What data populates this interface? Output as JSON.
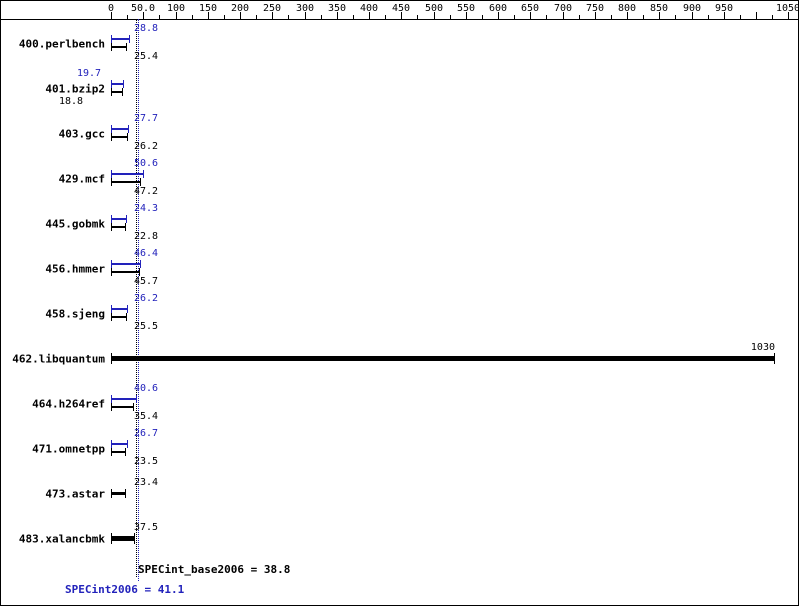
{
  "chart_data": {
    "type": "bar",
    "orientation": "horizontal",
    "x_axis": {
      "min": 0,
      "max": 1050,
      "major_tick_interval": 50,
      "minor_tick_interval": 25,
      "tick_labels": [
        {
          "value": 0,
          "label": "0"
        },
        {
          "value": 50,
          "label": "50.0"
        },
        {
          "value": 100,
          "label": "100"
        },
        {
          "value": 150,
          "label": "150"
        },
        {
          "value": 200,
          "label": "200"
        },
        {
          "value": 250,
          "label": "250"
        },
        {
          "value": 300,
          "label": "300"
        },
        {
          "value": 350,
          "label": "350"
        },
        {
          "value": 400,
          "label": "400"
        },
        {
          "value": 450,
          "label": "450"
        },
        {
          "value": 500,
          "label": "500"
        },
        {
          "value": 550,
          "label": "550"
        },
        {
          "value": 600,
          "label": "600"
        },
        {
          "value": 650,
          "label": "650"
        },
        {
          "value": 700,
          "label": "700"
        },
        {
          "value": 750,
          "label": "750"
        },
        {
          "value": 800,
          "label": "800"
        },
        {
          "value": 850,
          "label": "850"
        },
        {
          "value": 900,
          "label": "900"
        },
        {
          "value": 950,
          "label": "950"
        },
        {
          "value": 1050,
          "label": "1050"
        }
      ]
    },
    "benchmarks": [
      {
        "name": "400.perlbench",
        "peak": "28.8",
        "base": "25.4"
      },
      {
        "name": "401.bzip2",
        "peak": "19.7",
        "base": "18.8"
      },
      {
        "name": "403.gcc",
        "peak": "27.7",
        "base": "26.2"
      },
      {
        "name": "429.mcf",
        "peak": "50.6",
        "base": "47.2"
      },
      {
        "name": "445.gobmk",
        "peak": "24.3",
        "base": "22.8"
      },
      {
        "name": "456.hmmer",
        "peak": "46.4",
        "base": "45.7"
      },
      {
        "name": "458.sjeng",
        "peak": "26.2",
        "base": "25.5"
      },
      {
        "name": "462.libquantum",
        "peak": null,
        "base": "1030"
      },
      {
        "name": "464.h264ref",
        "peak": "40.6",
        "base": "35.4"
      },
      {
        "name": "471.omnetpp",
        "peak": "26.7",
        "base": "23.5"
      },
      {
        "name": "473.astar",
        "peak": null,
        "base": "23.4"
      },
      {
        "name": "483.xalancbmk",
        "peak": null,
        "base": "37.5"
      }
    ],
    "summary": {
      "base_text": "SPECint_base2006 = 38.8",
      "base_value": 38.8,
      "peak_text": "SPECint2006 = 41.1",
      "peak_value": 41.1
    },
    "colors": {
      "peak": "#2222bb",
      "base": "#000000"
    }
  }
}
